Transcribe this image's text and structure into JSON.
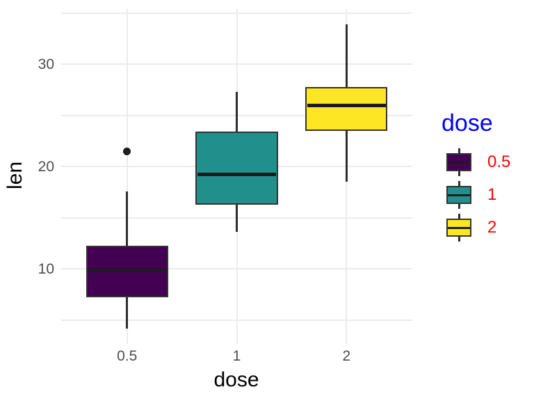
{
  "chart_data": {
    "type": "boxplot",
    "title": "",
    "xlabel": "dose",
    "ylabel": "len",
    "categories": [
      "0.5",
      "1",
      "2"
    ],
    "ylim": [
      2.7,
      35.4
    ],
    "y_major_ticks": [
      30,
      20,
      10
    ],
    "y_minor_gridlines": [
      35,
      25,
      15,
      5
    ],
    "grid": true,
    "legend_position": "right",
    "series": [
      {
        "name": "0.5",
        "fill": "#440154",
        "whisker_low": 4.2,
        "q1": 7.25,
        "median": 9.85,
        "q3": 12.25,
        "whisker_high": 17.6,
        "outliers": [
          21.5
        ]
      },
      {
        "name": "1",
        "fill": "#21908C",
        "whisker_low": 13.6,
        "q1": 16.25,
        "median": 19.25,
        "q3": 23.4,
        "whisker_high": 27.3,
        "outliers": []
      },
      {
        "name": "2",
        "fill": "#FDE725",
        "whisker_low": 18.5,
        "q1": 23.5,
        "median": 25.95,
        "q3": 27.8,
        "whisker_high": 33.9,
        "outliers": []
      }
    ],
    "legend": {
      "title": "dose",
      "title_color": "#0000FF",
      "label_color": "#FF0000",
      "entries": [
        {
          "label": "0.5",
          "fill": "#440154"
        },
        {
          "label": "1",
          "fill": "#21908C"
        },
        {
          "label": "2",
          "fill": "#FDE725"
        }
      ]
    },
    "colors": {
      "background": "#FFFFFF",
      "grid": "#EBEBEB",
      "box_border": "#333333",
      "median_line": "#1C1C1C",
      "outlier": "#1C1C1C",
      "tick_label": "#4D4D4D",
      "axis_title": "#000000"
    }
  }
}
